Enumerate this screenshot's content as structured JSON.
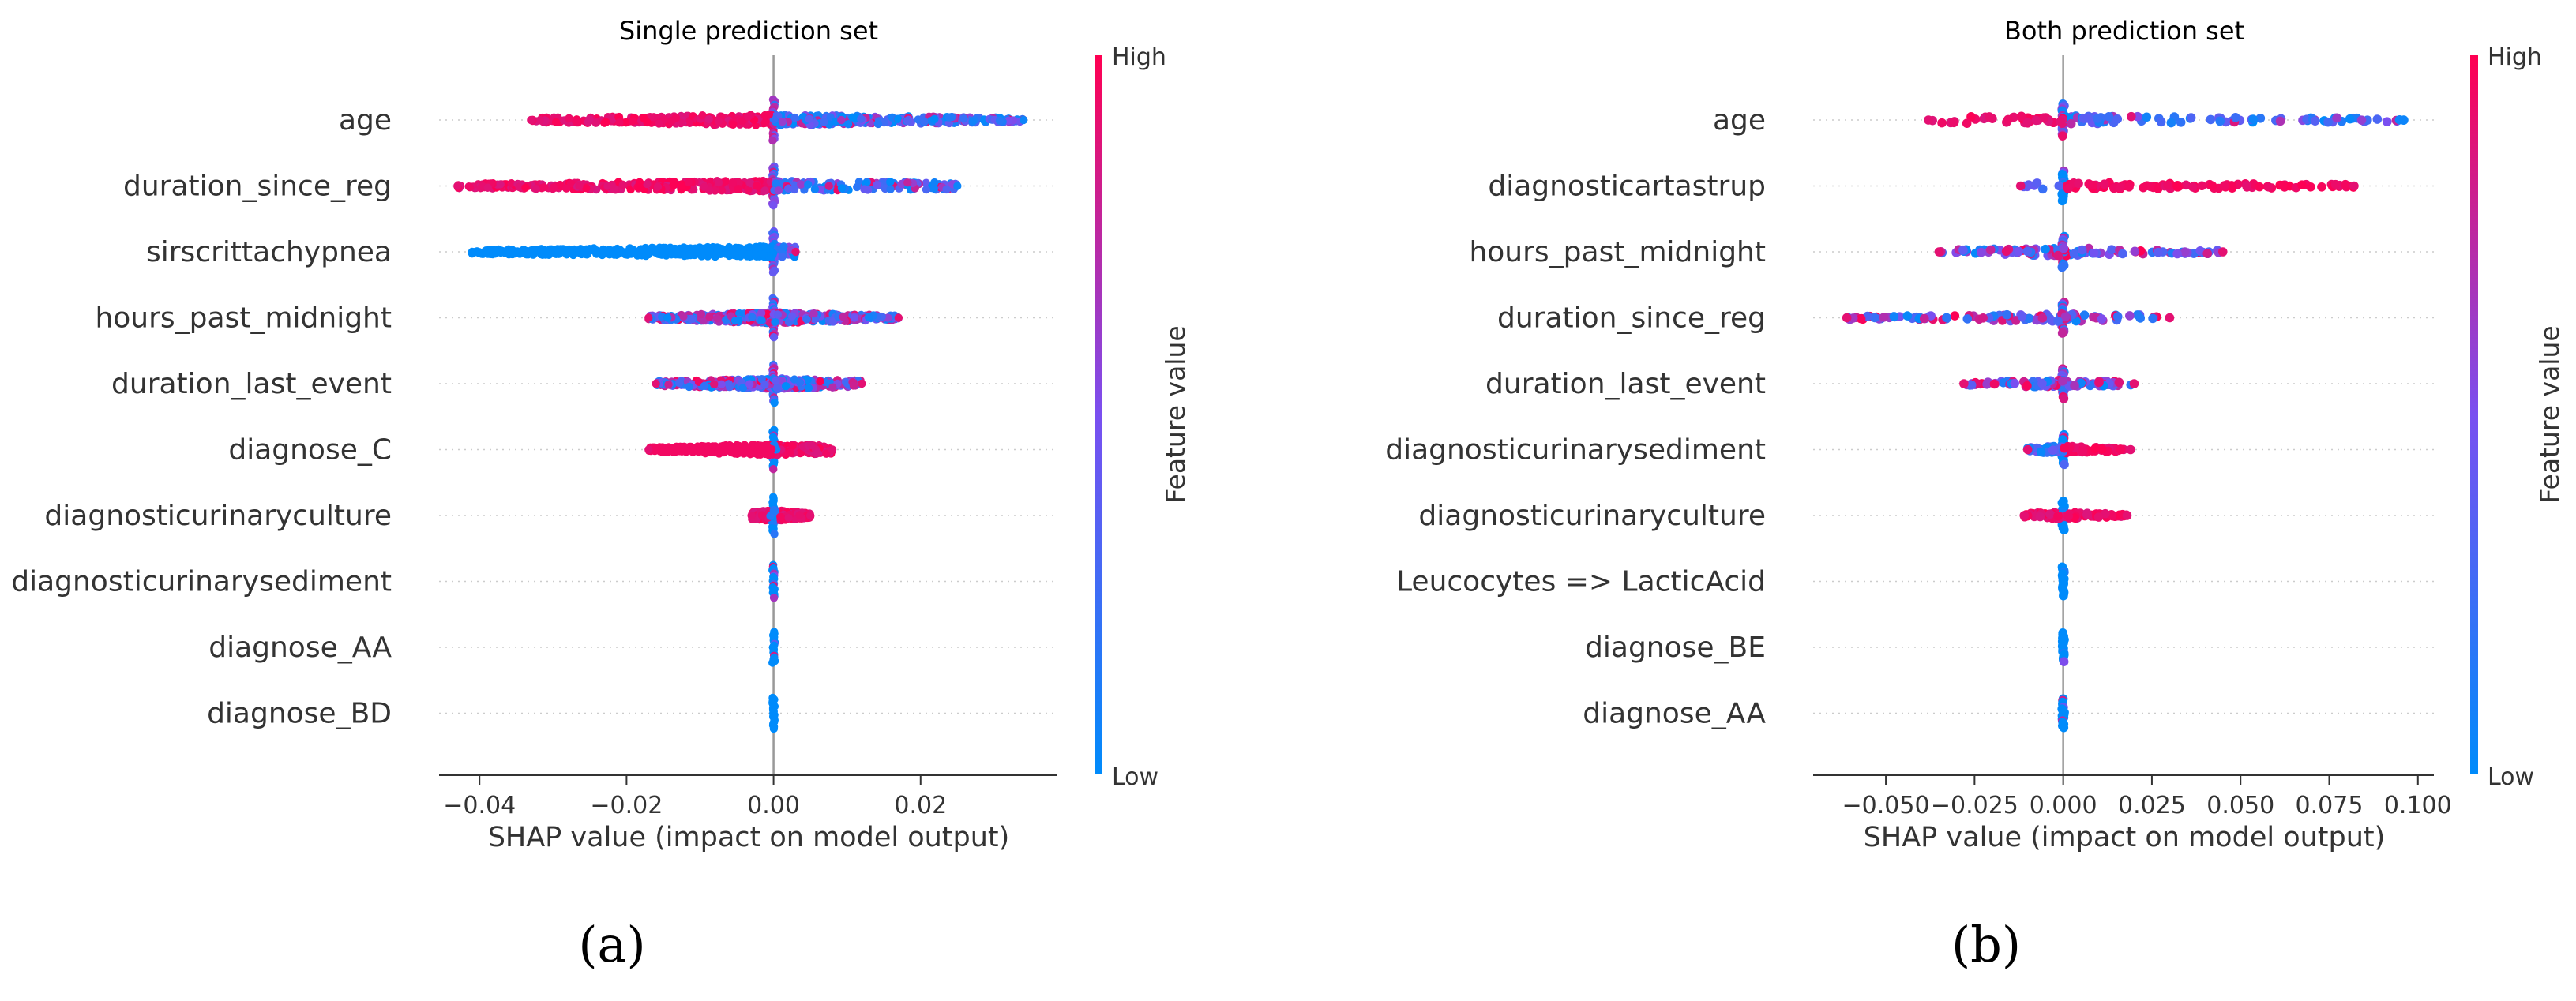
{
  "colors": {
    "low": "#008bfb",
    "mid": "#7a4ff0",
    "high": "#ff0052",
    "grid": "#cccccc",
    "axis": "#333333",
    "zero_line": "#999999"
  },
  "chart_data": [
    {
      "type": "scatter",
      "subtype": "shap-beeswarm",
      "title": "Single prediction set",
      "xlabel": "SHAP value (impact on model output)",
      "xlim": [
        -0.0455,
        0.0385
      ],
      "xticks": [
        -0.04,
        -0.02,
        0.0,
        0.02
      ],
      "xtick_labels": [
        "−0.04",
        "−0.02",
        "0.00",
        "0.02"
      ],
      "colorbar": {
        "label": "Feature value",
        "high": "High",
        "low": "Low"
      },
      "caption": "(a)",
      "features": [
        {
          "name": "age",
          "min": -0.033,
          "max": 0.034,
          "low_side": "positive",
          "dense": 1.0
        },
        {
          "name": "duration_since_reg",
          "min": -0.043,
          "max": 0.025,
          "low_side": "positive",
          "dense": 0.9
        },
        {
          "name": "sirscrittachypnea",
          "min": -0.041,
          "max": 0.003,
          "low_side": "negative",
          "dense": 1.0
        },
        {
          "name": "hours_past_midnight",
          "min": -0.017,
          "max": 0.017,
          "low_side": "mixed",
          "dense": 0.9
        },
        {
          "name": "duration_last_event",
          "min": -0.016,
          "max": 0.012,
          "low_side": "mixed",
          "dense": 0.85
        },
        {
          "name": "diagnose_C",
          "min": -0.017,
          "max": 0.008,
          "low_side": "zero",
          "dense": 0.9
        },
        {
          "name": "diagnosticurinaryculture",
          "min": -0.003,
          "max": 0.005,
          "low_side": "zero",
          "dense": 0.8
        },
        {
          "name": "diagnosticurinarysediment",
          "min": -0.0005,
          "max": 0.0005,
          "low_side": "zero",
          "dense": 0.6
        },
        {
          "name": "diagnose_AA",
          "min": -0.0003,
          "max": 0.0003,
          "low_side": "zero",
          "dense": 0.5
        },
        {
          "name": "diagnose_BD",
          "min": -0.0003,
          "max": 0.0003,
          "low_side": "zero",
          "dense": 0.5
        }
      ]
    },
    {
      "type": "scatter",
      "subtype": "shap-beeswarm",
      "title": "Both prediction set",
      "xlabel": "SHAP value (impact on model output)",
      "xlim": [
        -0.0705,
        0.1045
      ],
      "xticks": [
        -0.05,
        -0.025,
        0.0,
        0.025,
        0.05,
        0.075,
        0.1
      ],
      "xtick_labels": [
        "−0.050",
        "−0.025",
        "0.000",
        "0.025",
        "0.050",
        "0.075",
        "0.100"
      ],
      "colorbar": {
        "label": "Feature value",
        "high": "High",
        "low": "Low"
      },
      "caption": "(b)",
      "features": [
        {
          "name": "age",
          "min": -0.038,
          "max": 0.096,
          "low_side": "positive",
          "dense": 0.55
        },
        {
          "name": "diagnosticartastrup",
          "min": -0.012,
          "max": 0.082,
          "low_side": "zero_high_positive",
          "dense": 0.45
        },
        {
          "name": "hours_past_midnight",
          "min": -0.035,
          "max": 0.045,
          "low_side": "mixed",
          "dense": 0.5
        },
        {
          "name": "duration_since_reg",
          "min": -0.061,
          "max": 0.03,
          "low_side": "mixed",
          "dense": 0.5
        },
        {
          "name": "duration_last_event",
          "min": -0.028,
          "max": 0.02,
          "low_side": "mixed",
          "dense": 0.45
        },
        {
          "name": "diagnosticurinarysediment",
          "min": -0.01,
          "max": 0.019,
          "low_side": "zero_high_positive",
          "dense": 0.45
        },
        {
          "name": "diagnosticurinaryculture",
          "min": -0.011,
          "max": 0.018,
          "low_side": "zero",
          "dense": 0.4
        },
        {
          "name": "Leucocytes => LacticAcid",
          "min": -0.0005,
          "max": 0.0005,
          "low_side": "zero",
          "dense": 0.4
        },
        {
          "name": "diagnose_BE",
          "min": -0.0005,
          "max": 0.0005,
          "low_side": "zero",
          "dense": 0.4
        },
        {
          "name": "diagnose_AA",
          "min": -0.0005,
          "max": 0.0005,
          "low_side": "zero",
          "dense": 0.4
        }
      ]
    }
  ]
}
